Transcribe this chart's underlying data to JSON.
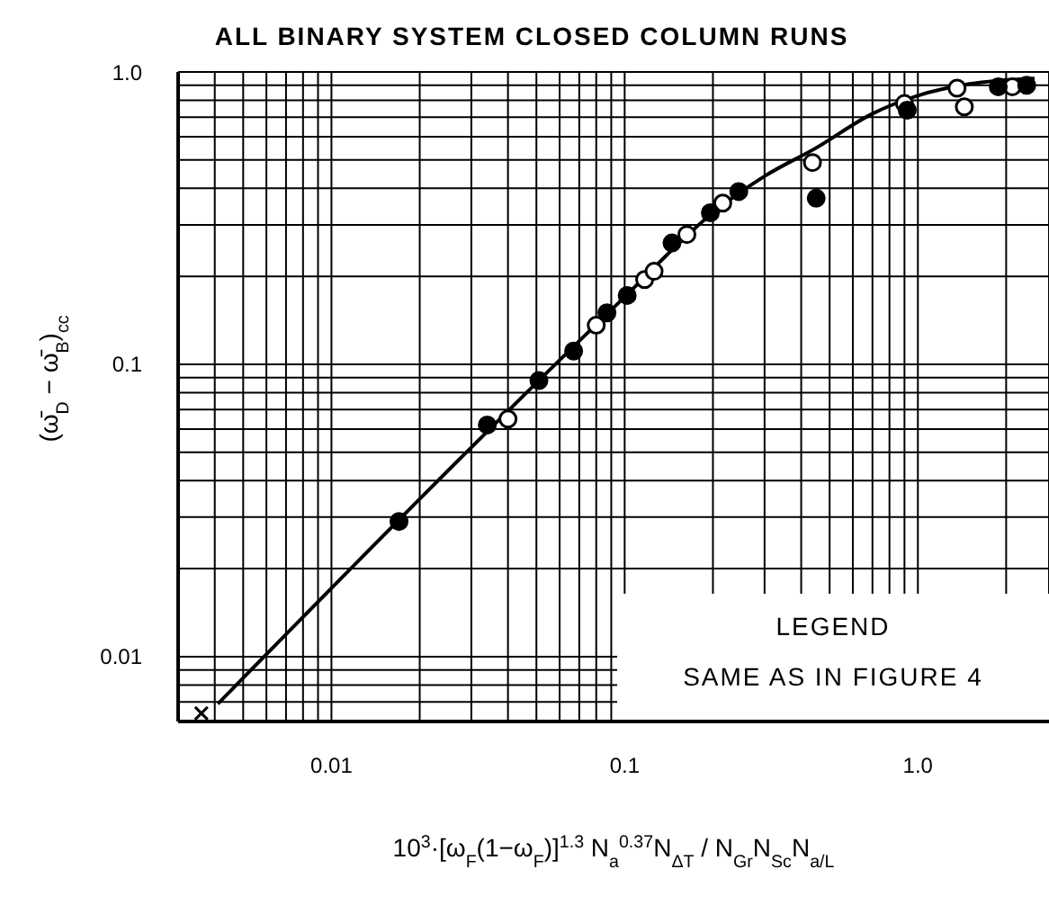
{
  "chart_data": {
    "type": "scatter",
    "title": "ALL BINARY SYSTEM CLOSED COLUMN RUNS",
    "xlabel": "10$^{3}$·[ω$_{F}$(1−ω$_{F}$)]$^{1.3}$  N$_{a}$$^{0.37}$N$_{ΔT}$ / N$_{Gr}$N$_{Sc}$N$_{a/L}$",
    "ylabel": "(ω̄$_{D}$ − ω̄$_{B}$)$_{cc}$",
    "annotations": [
      "LEGEND",
      "SAME AS IN FIGURE 4"
    ],
    "log": "xy",
    "grid": true,
    "xlim": [
      0.003,
      2.8
    ],
    "ylim": [
      0.006,
      1
    ],
    "xticks": [
      {
        "value": 0.003,
        "label": null
      },
      {
        "value": 0.004,
        "label": null
      },
      {
        "value": 0.005,
        "label": null
      },
      {
        "value": 0.006,
        "label": null
      },
      {
        "value": 0.007,
        "label": null
      },
      {
        "value": 0.008,
        "label": null
      },
      {
        "value": 0.009,
        "label": null
      },
      {
        "value": 0.01,
        "label": "0.01"
      },
      {
        "value": 0.02,
        "label": null
      },
      {
        "value": 0.03,
        "label": null
      },
      {
        "value": 0.04,
        "label": null
      },
      {
        "value": 0.05,
        "label": null
      },
      {
        "value": 0.06,
        "label": null
      },
      {
        "value": 0.07,
        "label": null
      },
      {
        "value": 0.08,
        "label": null
      },
      {
        "value": 0.09,
        "label": null
      },
      {
        "value": 0.1,
        "label": "0.1"
      },
      {
        "value": 0.2,
        "label": null
      },
      {
        "value": 0.3,
        "label": null
      },
      {
        "value": 0.4,
        "label": null
      },
      {
        "value": 0.5,
        "label": null
      },
      {
        "value": 0.6,
        "label": null
      },
      {
        "value": 0.7,
        "label": null
      },
      {
        "value": 0.8,
        "label": null
      },
      {
        "value": 0.9,
        "label": null
      },
      {
        "value": 1,
        "label": "1.0"
      },
      {
        "value": 2,
        "label": null
      }
    ],
    "yticks": [
      {
        "value": 0.006,
        "label": null
      },
      {
        "value": 0.007,
        "label": null
      },
      {
        "value": 0.008,
        "label": null
      },
      {
        "value": 0.009,
        "label": null
      },
      {
        "value": 0.01,
        "label": "0.01"
      },
      {
        "value": 0.02,
        "label": null
      },
      {
        "value": 0.03,
        "label": null
      },
      {
        "value": 0.04,
        "label": null
      },
      {
        "value": 0.05,
        "label": null
      },
      {
        "value": 0.06,
        "label": null
      },
      {
        "value": 0.07,
        "label": null
      },
      {
        "value": 0.08,
        "label": null
      },
      {
        "value": 0.09,
        "label": null
      },
      {
        "value": 0.1,
        "label": "0.1"
      },
      {
        "value": 0.2,
        "label": null
      },
      {
        "value": 0.3,
        "label": null
      },
      {
        "value": 0.4,
        "label": null
      },
      {
        "value": 0.5,
        "label": null
      },
      {
        "value": 0.6,
        "label": null
      },
      {
        "value": 0.7,
        "label": null
      },
      {
        "value": 0.8,
        "label": null
      },
      {
        "value": 0.9,
        "label": null
      },
      {
        "value": 1,
        "label": "1.0"
      }
    ],
    "series": [
      {
        "marker": "circle",
        "color": "#ffffff",
        "x": [
          0.04,
          0.08,
          0.117,
          0.126,
          0.163,
          0.216,
          0.437,
          0.9,
          1.36,
          1.44,
          2.1
        ],
        "values": [
          0.065,
          0.136,
          0.195,
          0.208,
          0.278,
          0.356,
          0.49,
          0.78,
          0.88,
          0.76,
          0.89
        ]
      },
      {
        "marker": "circle",
        "color": "#000000",
        "x": [
          0.017,
          0.034,
          0.051,
          0.067,
          0.087,
          0.102,
          0.145,
          0.196,
          0.245,
          0.45,
          0.92,
          1.88,
          2.35
        ],
        "values": [
          0.029,
          0.062,
          0.088,
          0.111,
          0.15,
          0.172,
          0.26,
          0.33,
          0.39,
          0.37,
          0.74,
          0.89,
          0.9
        ]
      },
      {
        "marker": "cross",
        "color": "#000000",
        "x": [
          0.0036
        ],
        "values": [
          0.0064
        ]
      },
      {
        "type": "line",
        "marker": "none",
        "line_style": "solid",
        "color": "#000000",
        "x": [
          0.0041,
          0.1,
          0.2,
          0.3,
          0.45,
          0.7,
          1,
          1.5,
          2.5
        ],
        "values": [
          0.0069,
          0.17,
          0.33,
          0.44,
          0.55,
          0.72,
          0.83,
          0.91,
          0.95
        ]
      }
    ]
  }
}
